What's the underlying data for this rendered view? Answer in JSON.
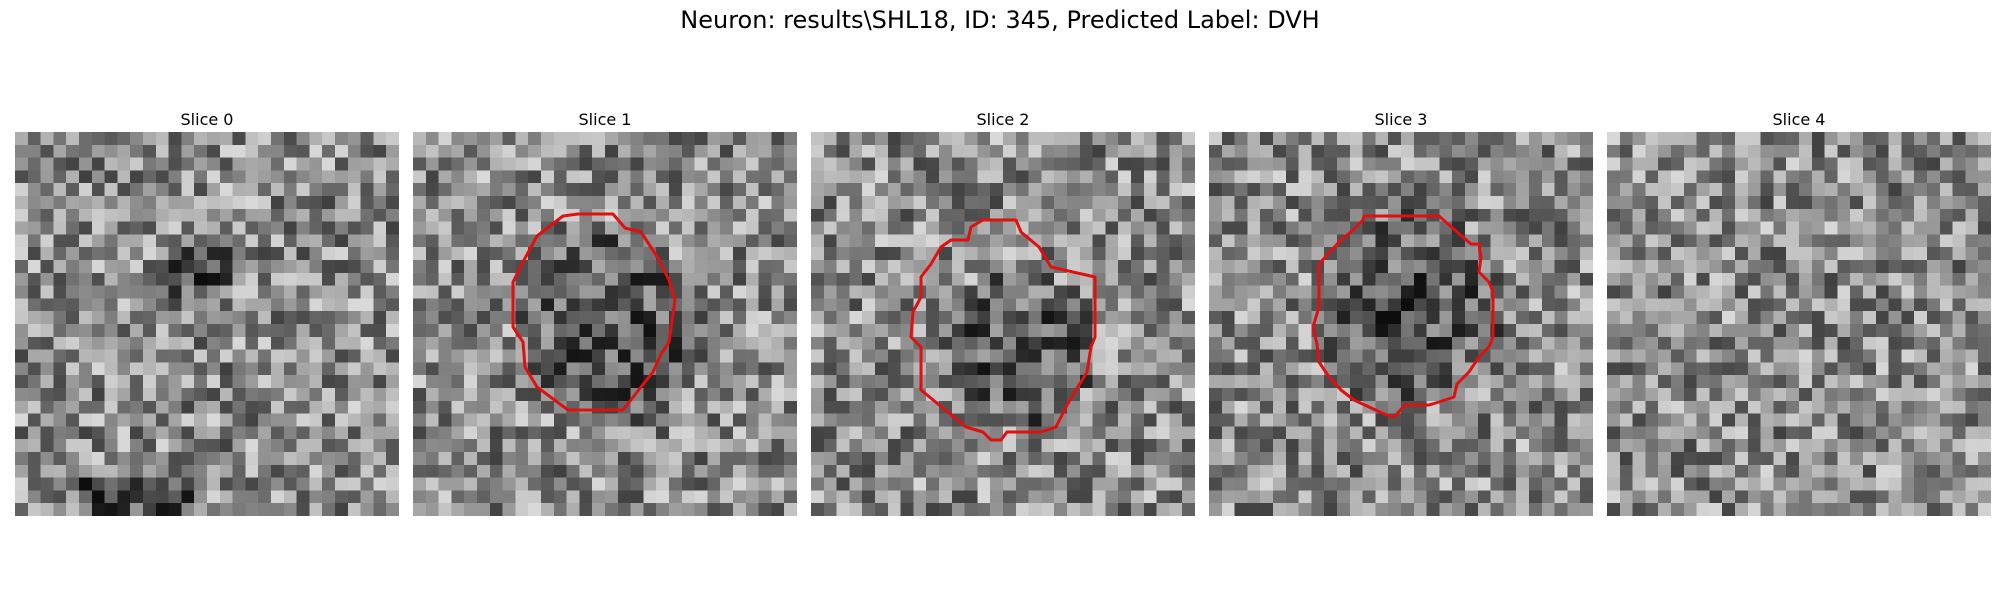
{
  "figure": {
    "title": "Neuron: results\\SHL18, ID: 345, Predicted Label: DVH"
  },
  "panels": [
    {
      "title": "Slice 0",
      "has_outline": false,
      "dark_blob": [
        0.45,
        0.35,
        0.35
      ],
      "shade": [
        0.15,
        0.9,
        0.45,
        1.0
      ]
    },
    {
      "title": "Slice 1",
      "has_outline": true,
      "dark_blob": [
        0.5,
        0.5,
        0.85
      ],
      "shade": null
    },
    {
      "title": "Slice 2",
      "has_outline": true,
      "dark_blob": [
        0.52,
        0.55,
        0.7
      ],
      "shade": null
    },
    {
      "title": "Slice 3",
      "has_outline": true,
      "dark_blob": [
        0.5,
        0.45,
        0.85
      ],
      "shade": null
    },
    {
      "title": "Slice 4",
      "has_outline": false,
      "dark_blob": null,
      "shade": null
    }
  ],
  "colors": {
    "outline": "#e01010",
    "background": "#ffffff"
  }
}
